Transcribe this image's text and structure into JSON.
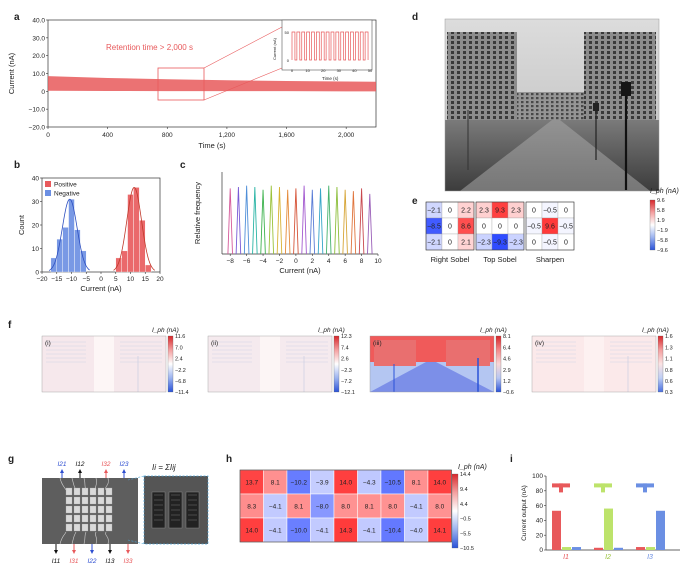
{
  "panel_labels": [
    "a",
    "b",
    "c",
    "d",
    "e",
    "f",
    "g",
    "h",
    "i"
  ],
  "colors": {
    "red": "#e8595b",
    "light_red": "#f4a0a0",
    "blue": "#6b8fe3",
    "green": "#bde36b",
    "dark_blue": "#2f4fd1"
  },
  "panel_a": {
    "annotation": "Retention time > 2,000 s",
    "inset": {
      "ylabel": "Current (nA)",
      "xlabel": "Time (s)",
      "xticks": [
        "0",
        "10",
        "20",
        "30",
        "40",
        "50"
      ],
      "yticks": [
        "50",
        "0"
      ]
    }
  },
  "panel_e": {
    "colorbar_title": "I_ph (nA)",
    "colorbar_ticks": [
      "9.6",
      "5.8",
      "1.9",
      "−1.9",
      "−5.8",
      "−9.6"
    ],
    "kernels": [
      {
        "name": "Right Sobel",
        "values": [
          [
            "−2.1",
            "0",
            "2.2"
          ],
          [
            "−8.5",
            "0",
            "8.6"
          ],
          [
            "−2.1",
            "0",
            "2.1"
          ]
        ]
      },
      {
        "name": "Top Sobel",
        "values": [
          [
            "2.3",
            "9.3",
            "2.3"
          ],
          [
            "0",
            "0",
            "0"
          ],
          [
            "−2.3",
            "−9.3",
            "−2.3"
          ]
        ]
      },
      {
        "name": "Sharpen",
        "values": [
          [
            "0",
            "−0.5",
            "0"
          ],
          [
            "−0.5",
            "9.6",
            "−0.5"
          ],
          [
            "0",
            "−0.5",
            "0"
          ]
        ]
      }
    ]
  },
  "panel_f": {
    "images": [
      {
        "label": "(i)",
        "cb_title": "I_ph (nA)",
        "ticks": [
          "11.6",
          "7.0",
          "2.4",
          "−2.2",
          "−6.8",
          "−11.4"
        ]
      },
      {
        "label": "(ii)",
        "cb_title": "I_ph (nA)",
        "ticks": [
          "12.3",
          "7.4",
          "2.6",
          "−2.3",
          "−7.2",
          "−12.1"
        ]
      },
      {
        "label": "(iii)",
        "cb_title": "I_ph (nA)",
        "ticks": [
          "8.1",
          "6.4",
          "4.6",
          "2.9",
          "1.2",
          "−0.6"
        ]
      },
      {
        "label": "(iv)",
        "cb_title": "I_ph (nA)",
        "ticks": [
          "1.6",
          "1.3",
          "1.1",
          "0.8",
          "0.6",
          "0.3"
        ]
      }
    ]
  },
  "panel_g": {
    "top_labels": [
      "I21",
      "I12",
      "I32",
      "I23"
    ],
    "bottom_labels": [
      "I11",
      "I31",
      "I22",
      "I13",
      "I33"
    ],
    "formula": "Ii = ΣIij"
  },
  "panel_h": {
    "colorbar_title": "I_ph (nA)",
    "colorbar_ticks": [
      "14.4",
      "9.4",
      "4.4",
      "−0.5",
      "−5.5",
      "−10.5"
    ],
    "rows": [
      [
        "13.7",
        "8.1",
        "−10.2",
        "−3.9",
        "14.0",
        "−4.3",
        "−10.5",
        "8.1",
        "14.0"
      ],
      [
        "8.3",
        "−4.1",
        "8.1",
        "−8.0",
        "8.0",
        "8.1",
        "8.0",
        "−4.1",
        "8.0"
      ],
      [
        "14.0",
        "−4.1",
        "−10.0",
        "−4.1",
        "14.3",
        "−4.1",
        "−10.4",
        "−4.0",
        "14.1"
      ]
    ]
  },
  "chart_data": [
    {
      "panel": "a",
      "type": "line",
      "xlabel": "Time (s)",
      "ylabel": "Current (nA)",
      "xlim": [
        0,
        2200
      ],
      "ylim": [
        -20,
        40
      ],
      "xticks": [
        "0",
        "400",
        "800",
        "1,200",
        "1,600",
        "2,000"
      ],
      "yticks": [
        "40.0",
        "30.0",
        "20.0",
        "10.0",
        "0",
        "−10.0",
        "−20.0"
      ],
      "series": [
        {
          "x": [
            0,
            400,
            800,
            1200,
            1600,
            2000,
            2200
          ],
          "upper": [
            8.5,
            7.5,
            6.8,
            6.2,
            5.8,
            5.5,
            5.4
          ],
          "lower": [
            0.3,
            0.2,
            0.1,
            0.1,
            0.1,
            0.0,
            0.0
          ]
        }
      ]
    },
    {
      "panel": "b",
      "type": "bar",
      "xlabel": "Current (nA)",
      "ylabel": "Count",
      "xlim": [
        -20,
        20
      ],
      "ylim": [
        0,
        40
      ],
      "xticks": [
        "−20",
        "−15",
        "−10",
        "−5",
        "0",
        "5",
        "10",
        "15",
        "20"
      ],
      "yticks": [
        "0",
        "10",
        "20",
        "30",
        "40"
      ],
      "series": [
        {
          "name": "Positive",
          "bins": [
            6,
            8,
            10,
            12,
            14,
            16
          ],
          "values": [
            6,
            9,
            33,
            36,
            22,
            3
          ]
        },
        {
          "name": "Negative",
          "bins": [
            -16,
            -14,
            -12,
            -10,
            -8,
            -6
          ],
          "values": [
            6,
            14,
            19,
            31,
            18,
            9
          ]
        }
      ]
    },
    {
      "panel": "c",
      "type": "line",
      "xlabel": "Current (nA)",
      "ylabel": "Relative frequency",
      "xlim": [
        -9,
        10
      ],
      "xticks": [
        "−8",
        "−6",
        "−4",
        "−2",
        "0",
        "2",
        "4",
        "6",
        "8",
        "10"
      ],
      "peaks": [
        -8,
        -7,
        -6,
        -5,
        -4,
        -3,
        -2,
        -1,
        0,
        1,
        2,
        3,
        4,
        5,
        6,
        7,
        8,
        9
      ],
      "peak_heights": [
        0.48,
        0.49,
        0.5,
        0.49,
        0.47,
        0.5,
        0.49,
        0.47,
        0.48,
        0.5,
        0.47,
        0.48,
        0.5,
        0.49,
        0.47,
        0.46,
        0.48,
        0.44
      ]
    },
    {
      "panel": "i",
      "type": "bar",
      "ylabel": "Current output (nA)",
      "ylim": [
        0,
        100
      ],
      "yticks": [
        "0",
        "20",
        "40",
        "60",
        "80",
        "100"
      ],
      "categories": [
        "I1",
        "I2",
        "I3"
      ],
      "series": [
        {
          "values": [
            53,
            3,
            4
          ]
        },
        {
          "values": [
            4,
            56,
            4
          ]
        },
        {
          "values": [
            4,
            3,
            53
          ]
        }
      ]
    }
  ]
}
